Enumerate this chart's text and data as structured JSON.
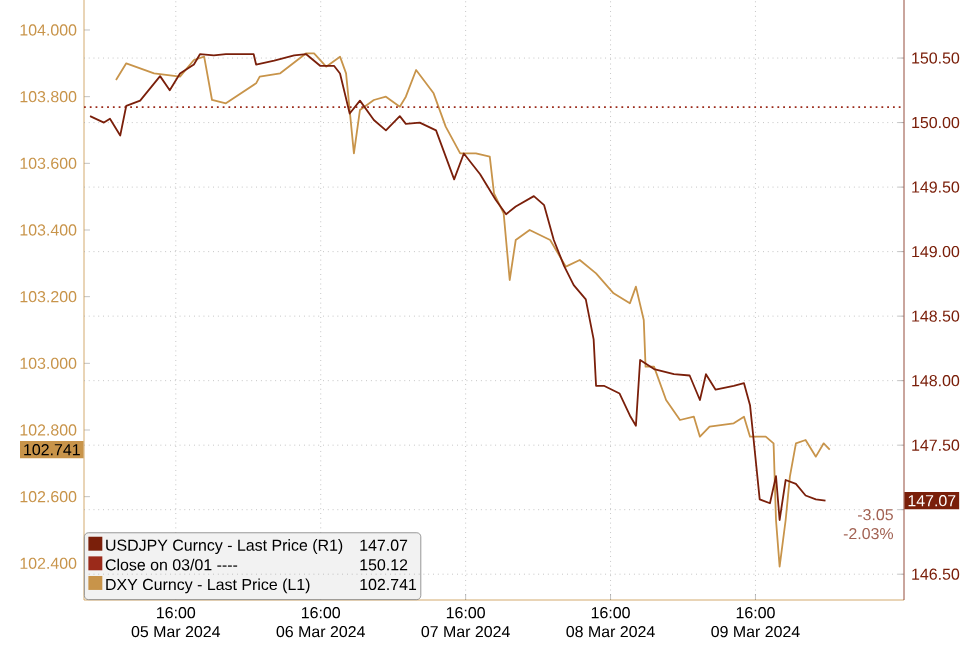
{
  "chart_data": {
    "type": "line",
    "grid": true,
    "legend": "bottom left",
    "xlim": [
      "2024-03-05T00:48",
      "2024-03-10T16:36"
    ],
    "xticks": [
      {
        "value": "2024-03-05T16:00",
        "label": "16:00\n05 Mar 2024"
      },
      {
        "value": "2024-03-06T16:00",
        "label": "16:00\n06 Mar 2024"
      },
      {
        "value": "2024-03-07T16:00",
        "label": "16:00\n07 Mar 2024"
      },
      {
        "value": "2024-03-08T16:00",
        "label": "16:00\n08 Mar 2024"
      },
      {
        "value": "2024-03-09T16:00",
        "label": "16:00\n09 Mar 2024"
      }
    ],
    "ylim": [
      102.29,
      104.09
    ],
    "yticks": [
      {
        "value": 102.4,
        "label": "102.400"
      },
      {
        "value": 102.6,
        "label": "102.600"
      },
      {
        "value": 102.8,
        "label": "102.800"
      },
      {
        "value": 103.0,
        "label": "103.000"
      },
      {
        "value": 103.2,
        "label": "103.200"
      },
      {
        "value": 103.4,
        "label": "103.400"
      },
      {
        "value": 103.6,
        "label": "103.600"
      },
      {
        "value": 103.8,
        "label": "103.800"
      },
      {
        "value": 104.0,
        "label": "104.000"
      }
    ],
    "y2lim": [
      146.3,
      150.95
    ],
    "y2ticks": [
      {
        "value": 146.5,
        "label": "146.50"
      },
      {
        "value": 147.0,
        "label": null
      },
      {
        "value": 147.5,
        "label": "147.50"
      },
      {
        "value": 148.0,
        "label": "148.00"
      },
      {
        "value": 148.5,
        "label": "148.50"
      },
      {
        "value": 149.0,
        "label": "149.00"
      },
      {
        "value": 149.5,
        "label": "149.50"
      },
      {
        "value": 150.0,
        "label": "150.00"
      },
      {
        "value": 150.5,
        "label": "150.50"
      }
    ],
    "series": [
      {
        "name": "USDJPY Curncy - Last Price (R1)",
        "color": "#7a1f0a",
        "axis": "y2",
        "x": [
          "2024-03-05T01:48",
          "2024-03-05T04:06",
          "2024-03-05T05:06",
          "2024-03-05T06:48",
          "2024-03-05T07:48",
          "2024-03-05T10:06",
          "2024-03-05T13:24",
          "2024-03-05T15:00",
          "2024-03-05T16:42",
          "2024-03-05T19:00",
          "2024-03-05T20:00",
          "2024-03-05T22:18",
          "2024-03-06T00:18",
          "2024-03-06T04:54",
          "2024-03-06T05:18",
          "2024-03-06T08:18",
          "2024-03-06T11:36",
          "2024-03-06T13:36",
          "2024-03-06T15:54",
          "2024-03-06T18:12",
          "2024-03-06T19:12",
          "2024-03-06T20:48",
          "2024-03-06T22:30",
          "2024-03-07T00:48",
          "2024-03-07T02:48",
          "2024-03-07T05:06",
          "2024-03-07T06:06",
          "2024-03-07T08:24",
          "2024-03-07T11:06",
          "2024-03-07T14:06",
          "2024-03-07T15:42",
          "2024-03-07T18:24",
          "2024-03-07T21:00",
          "2024-03-07T22:42",
          "2024-03-08T00:18",
          "2024-03-08T03:18",
          "2024-03-08T05:00",
          "2024-03-08T06:36",
          "2024-03-08T08:18",
          "2024-03-08T09:54",
          "2024-03-08T11:54",
          "2024-03-08T13:12",
          "2024-03-08T13:36",
          "2024-03-08T14:54",
          "2024-03-08T17:30",
          "2024-03-08T19:12",
          "2024-03-08T20:12",
          "2024-03-08T20:54",
          "2024-03-08T23:12",
          "2024-03-09T02:30",
          "2024-03-09T05:06",
          "2024-03-09T06:48",
          "2024-03-09T07:48",
          "2024-03-09T09:24",
          "2024-03-09T12:24",
          "2024-03-09T14:06",
          "2024-03-09T15:06",
          "2024-03-09T15:42",
          "2024-03-09T16:42",
          "2024-03-09T18:24",
          "2024-03-09T19:24",
          "2024-03-09T20:00",
          "2024-03-09T21:00",
          "2024-03-09T22:42",
          "2024-03-10T00:18",
          "2024-03-10T02:00",
          "2024-03-10T03:36"
        ],
        "values": [
          150.05,
          150.0,
          150.03,
          149.9,
          150.13,
          150.17,
          150.36,
          150.25,
          150.38,
          150.45,
          150.53,
          150.52,
          150.53,
          150.53,
          150.45,
          150.48,
          150.52,
          150.53,
          150.44,
          150.44,
          150.38,
          150.07,
          150.17,
          150.02,
          149.94,
          150.05,
          149.99,
          150.0,
          149.94,
          149.56,
          149.76,
          149.6,
          149.4,
          149.29,
          149.35,
          149.43,
          149.36,
          149.09,
          148.89,
          148.74,
          148.63,
          148.32,
          147.96,
          147.96,
          147.9,
          147.73,
          147.65,
          148.16,
          148.09,
          148.05,
          148.04,
          147.85,
          148.05,
          147.93,
          147.96,
          147.98,
          147.81,
          147.54,
          147.08,
          147.05,
          147.26,
          146.92,
          147.23,
          147.2,
          147.11,
          147.08,
          147.07
        ]
      },
      {
        "name": "DXY Curncy - Last Price (L1)",
        "color": "#c8944a",
        "x": [
          "2024-03-05T06:06",
          "2024-03-05T07:48",
          "2024-03-05T12:24",
          "2024-03-05T16:42",
          "2024-03-05T19:00",
          "2024-03-05T20:42",
          "2024-03-05T22:00",
          "2024-03-06T00:18",
          "2024-03-06T05:18",
          "2024-03-06T05:54",
          "2024-03-06T09:18",
          "2024-03-06T13:36",
          "2024-03-06T14:54",
          "2024-03-06T16:54",
          "2024-03-06T19:12",
          "2024-03-06T20:12",
          "2024-03-06T21:30",
          "2024-03-06T22:30",
          "2024-03-07T00:48",
          "2024-03-07T02:48",
          "2024-03-07T05:06",
          "2024-03-07T06:06",
          "2024-03-07T07:48",
          "2024-03-07T10:42",
          "2024-03-07T12:42",
          "2024-03-07T15:06",
          "2024-03-07T17:42",
          "2024-03-07T20:00",
          "2024-03-07T20:42",
          "2024-03-07T22:18",
          "2024-03-07T23:18",
          "2024-03-08T00:18",
          "2024-03-08T02:36",
          "2024-03-08T06:00",
          "2024-03-08T08:36",
          "2024-03-08T10:54",
          "2024-03-08T13:36",
          "2024-03-08T16:30",
          "2024-03-08T19:12",
          "2024-03-08T20:12",
          "2024-03-08T21:30",
          "2024-03-08T21:48",
          "2024-03-08T23:12",
          "2024-03-09T01:12",
          "2024-03-09T03:30",
          "2024-03-09T05:48",
          "2024-03-09T06:48",
          "2024-03-09T08:24",
          "2024-03-09T12:24",
          "2024-03-09T14:06",
          "2024-03-09T15:06",
          "2024-03-09T17:42",
          "2024-03-09T19:00",
          "2024-03-09T19:24",
          "2024-03-09T20:00",
          "2024-03-09T21:00",
          "2024-03-09T21:42",
          "2024-03-09T22:42",
          "2024-03-10T00:18",
          "2024-03-10T02:00",
          "2024-03-10T03:18",
          "2024-03-10T04:18"
        ],
        "values": [
          103.85,
          103.9,
          103.87,
          103.86,
          103.91,
          103.92,
          103.79,
          103.78,
          103.84,
          103.86,
          103.87,
          103.93,
          103.93,
          103.89,
          103.92,
          103.87,
          103.63,
          103.76,
          103.79,
          103.8,
          103.77,
          103.8,
          103.88,
          103.81,
          103.71,
          103.63,
          103.63,
          103.62,
          103.51,
          103.45,
          103.25,
          103.37,
          103.4,
          103.37,
          103.29,
          103.31,
          103.27,
          103.21,
          103.18,
          103.23,
          103.13,
          102.99,
          102.99,
          102.89,
          102.83,
          102.84,
          102.78,
          102.81,
          102.82,
          102.84,
          102.78,
          102.78,
          102.76,
          102.53,
          102.39,
          102.53,
          102.66,
          102.76,
          102.77,
          102.72,
          102.76,
          102.741
        ]
      }
    ],
    "ref_lines": [
      {
        "axis": "y2",
        "value": 150.12,
        "label": "Close on 03/01 ----",
        "color": "#9b2a1a",
        "line_style": "dotted"
      }
    ],
    "annotations": [
      "147.07",
      "150.12",
      "102.741",
      "147.07",
      "102.741",
      "-3.05",
      "-2.03%"
    ]
  }
}
